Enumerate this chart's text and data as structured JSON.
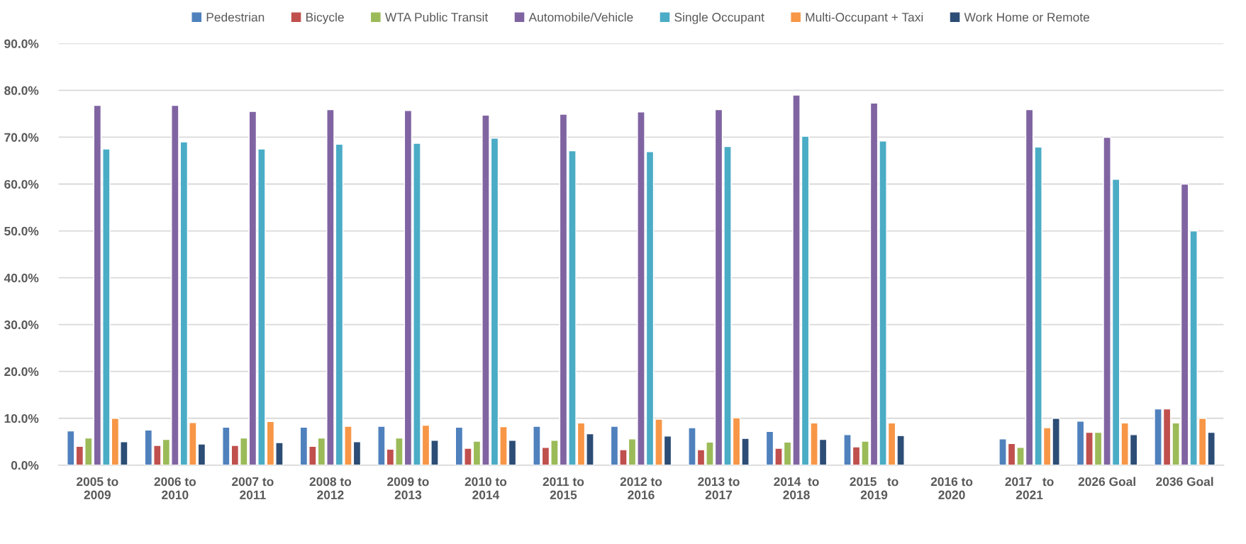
{
  "chart_data": {
    "type": "bar",
    "categories": [
      "2005 to\n2009",
      "2006 to\n2010",
      "2007 to\n2011",
      "2008 to\n2012",
      "2009 to\n2013",
      "2010 to\n2014",
      "2011 to\n2015",
      "2012 to\n2016",
      "2013 to\n2017",
      "2014  to\n2018",
      "2015   to\n2019",
      "2016 to\n2020",
      "2017   to\n2021",
      "2026 Goal",
      "2036 Goal"
    ],
    "series": [
      {
        "name": "Pedestrian",
        "color": "#4f81bd",
        "values": [
          7.3,
          7.5,
          8.1,
          8.1,
          8.3,
          8.1,
          8.3,
          8.3,
          8.0,
          7.2,
          6.5,
          null,
          5.6,
          9.4,
          12.0
        ]
      },
      {
        "name": "Bicycle",
        "color": "#c0504d",
        "values": [
          4.0,
          4.2,
          4.2,
          4.0,
          3.4,
          3.6,
          3.8,
          3.3,
          3.3,
          3.6,
          3.9,
          null,
          4.6,
          7.0,
          12.0
        ]
      },
      {
        "name": "WTA Public Transit",
        "color": "#9bbb59",
        "values": [
          5.8,
          5.5,
          5.8,
          5.8,
          5.8,
          5.1,
          5.3,
          5.6,
          4.9,
          4.9,
          5.1,
          null,
          3.8,
          7.0,
          9.0
        ]
      },
      {
        "name": "Automobile/Vehicle",
        "color": "#8064a2",
        "values": [
          76.8,
          76.8,
          75.5,
          75.9,
          75.7,
          74.7,
          74.9,
          75.4,
          75.9,
          79.0,
          77.3,
          null,
          75.9,
          70.0,
          60.0
        ]
      },
      {
        "name": "Single Occupant",
        "color": "#4bacc6",
        "values": [
          67.5,
          69.0,
          67.5,
          68.5,
          68.7,
          69.8,
          67.1,
          66.9,
          68.0,
          70.2,
          69.2,
          null,
          67.9,
          61.0,
          50.0
        ]
      },
      {
        "name": "Multi-Occupant + Taxi",
        "color": "#f79646",
        "values": [
          10.0,
          9.1,
          9.3,
          8.3,
          8.5,
          8.2,
          9.0,
          9.8,
          10.1,
          9.0,
          9.0,
          null,
          8.0,
          9.0,
          10.0
        ]
      },
      {
        "name": "Work Home or Remote",
        "color": "#2c4d75",
        "values": [
          5.0,
          4.5,
          4.8,
          5.0,
          5.3,
          5.3,
          6.7,
          6.2,
          5.7,
          5.5,
          6.3,
          null,
          10.0,
          6.5,
          7.0
        ]
      }
    ],
    "ylim": [
      0,
      90
    ],
    "yticks": [
      {
        "value": 0,
        "label": "0.0%"
      },
      {
        "value": 10,
        "label": "10.0%"
      },
      {
        "value": 20,
        "label": "20.0%"
      },
      {
        "value": 30,
        "label": "30.0%"
      },
      {
        "value": 40,
        "label": "40.0%"
      },
      {
        "value": 50,
        "label": "50.0%"
      },
      {
        "value": 60,
        "label": "60.0%"
      },
      {
        "value": 70,
        "label": "70.0%"
      },
      {
        "value": 80,
        "label": "80.0%"
      },
      {
        "value": 90,
        "label": "90.0%"
      }
    ],
    "grid": "y",
    "legend": "top"
  }
}
